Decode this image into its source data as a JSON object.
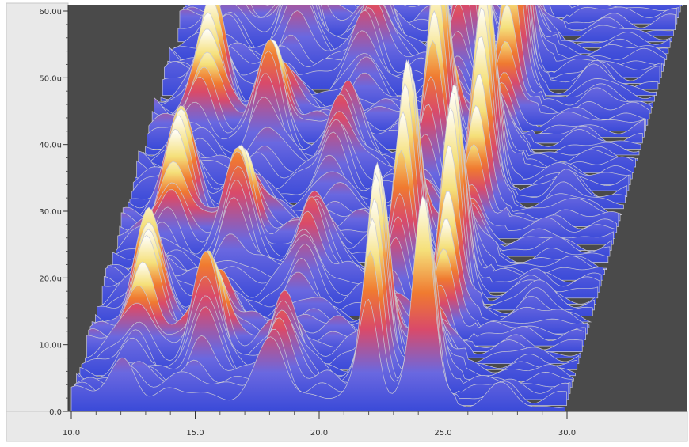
{
  "chart_data": {
    "type": "surface",
    "title": "",
    "xlabel": "",
    "ylabel": "",
    "xlim": [
      10.0,
      30.0
    ],
    "ylim": [
      0.0,
      60.0
    ],
    "x_ticks": [
      "10.0",
      "15.0",
      "20.0",
      "25.0",
      "30.0"
    ],
    "y_ticks": [
      "0.0",
      "10.0u",
      "20.0u",
      "30.0u",
      "40.0u",
      "50.0u",
      "60.0u"
    ],
    "grid": false,
    "legend": "none",
    "colormap": [
      "#3a4ad8",
      "#6a68e0",
      "#d94a6a",
      "#f07a30",
      "#f5e07a",
      "#ffffff"
    ],
    "waterfall_peaks": [
      {
        "x": 22.0,
        "amplitude": 60.0
      },
      {
        "x": 24.2,
        "amplitude": 60.0
      },
      {
        "x": 12.2,
        "amplitude": 30.0
      },
      {
        "x": 15.0,
        "amplitude": 28.0
      },
      {
        "x": 18.2,
        "amplitude": 22.0
      },
      {
        "x": 27.5,
        "amplitude": 8.0
      }
    ]
  },
  "colors": {
    "plot_background": "#4a4a4a",
    "axis_background": "#e9e9e9",
    "frame": "#c8c8c8"
  }
}
